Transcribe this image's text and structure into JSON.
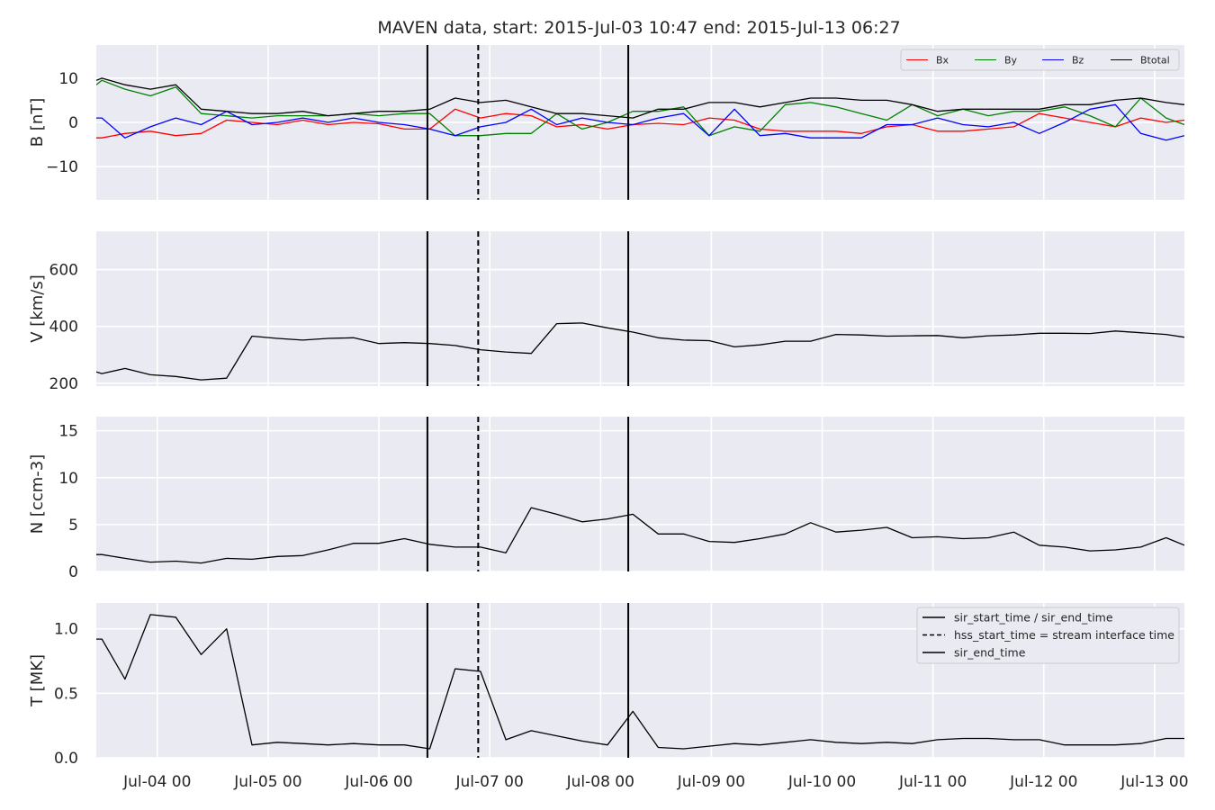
{
  "title": "MAVEN data, start: 2015-Jul-03 10:47  end: 2015-Jul-13 06:27",
  "colors": {
    "panel_bg": "#eaeaf2",
    "grid": "#ffffff",
    "Bx": "#ff0000",
    "By": "#008000",
    "Bz": "#0000ff",
    "Btotal": "#000000",
    "event_lines": "#000000"
  },
  "xaxis": {
    "range_days": [
      "2015-07-03T10:47",
      "2015-07-13T06:27"
    ],
    "ticks": [
      {
        "t": "2015-07-04T00:00",
        "label": "Jul-04 00"
      },
      {
        "t": "2015-07-05T00:00",
        "label": "Jul-05 00"
      },
      {
        "t": "2015-07-06T00:00",
        "label": "Jul-06 00"
      },
      {
        "t": "2015-07-07T00:00",
        "label": "Jul-07 00"
      },
      {
        "t": "2015-07-08T00:00",
        "label": "Jul-08 00"
      },
      {
        "t": "2015-07-09T00:00",
        "label": "Jul-09 00"
      },
      {
        "t": "2015-07-10T00:00",
        "label": "Jul-10 00"
      },
      {
        "t": "2015-07-11T00:00",
        "label": "Jul-11 00"
      },
      {
        "t": "2015-07-12T00:00",
        "label": "Jul-12 00"
      },
      {
        "t": "2015-07-13T00:00",
        "label": "Jul-13 00"
      }
    ]
  },
  "chart_data": {
    "type": "line",
    "title": "MAVEN data, start: 2015-Jul-03 10:47  end: 2015-Jul-13 06:27",
    "event_lines": [
      {
        "t": "2015-07-06T10:30",
        "style": "solid",
        "label": "sir_start_time / sir_end_time"
      },
      {
        "t": "2015-07-06T21:30",
        "style": "dashed",
        "label": "hss_start_time = stream interface time"
      },
      {
        "t": "2015-07-08T06:00",
        "style": "solid",
        "label": "sir_end_time"
      }
    ],
    "panels": [
      {
        "id": "B",
        "ylabel": "B [nT]",
        "ylim": [
          -17.5,
          17.5
        ],
        "yticks": [
          {
            "v": -10,
            "label": "−10"
          },
          {
            "v": 0,
            "label": "0"
          },
          {
            "v": 10,
            "label": "10"
          }
        ],
        "legend": {
          "placement": "upper-right",
          "entries": [
            "Bx",
            "By",
            "Bz",
            "Btotal"
          ]
        },
        "x": [
          "2015-07-03T10:47",
          "2015-07-03T12:00",
          "2015-07-03T17:00",
          "2015-07-03T22:30",
          "2015-07-04T04:00",
          "2015-07-04T09:30",
          "2015-07-04T15:00",
          "2015-07-04T20:30",
          "2015-07-05T02:00",
          "2015-07-05T07:30",
          "2015-07-05T13:00",
          "2015-07-05T18:30",
          "2015-07-06T00:00",
          "2015-07-06T05:30",
          "2015-07-06T11:00",
          "2015-07-06T16:30",
          "2015-07-06T22:00",
          "2015-07-07T03:30",
          "2015-07-07T09:00",
          "2015-07-07T14:30",
          "2015-07-07T20:00",
          "2015-07-08T01:30",
          "2015-07-08T07:00",
          "2015-07-08T12:30",
          "2015-07-08T18:00",
          "2015-07-08T23:30",
          "2015-07-09T05:00",
          "2015-07-09T10:30",
          "2015-07-09T16:00",
          "2015-07-09T21:30",
          "2015-07-10T03:00",
          "2015-07-10T08:30",
          "2015-07-10T14:00",
          "2015-07-10T19:30",
          "2015-07-11T01:00",
          "2015-07-11T06:30",
          "2015-07-11T12:00",
          "2015-07-11T17:30",
          "2015-07-11T23:00",
          "2015-07-12T04:30",
          "2015-07-12T10:00",
          "2015-07-12T15:30",
          "2015-07-12T21:00",
          "2015-07-13T02:30",
          "2015-07-13T06:27"
        ],
        "series": [
          {
            "name": "Bx",
            "values": [
              -3.5,
              -3.5,
              -2.5,
              -2.0,
              -3.0,
              -2.5,
              0.5,
              0.0,
              -0.5,
              0.5,
              -0.5,
              0.0,
              -0.3,
              -1.5,
              -1.5,
              3.0,
              1.0,
              2.0,
              1.5,
              -1.0,
              -0.5,
              -1.5,
              -0.5,
              -0.2,
              -0.5,
              1.0,
              0.5,
              -1.5,
              -2.0,
              -2.0,
              -2.0,
              -2.5,
              -1.0,
              -0.5,
              -2.0,
              -2.0,
              -1.5,
              -1.0,
              2.0,
              1.0,
              0.0,
              -1.0,
              1.0,
              0.0,
              0.5
            ]
          },
          {
            "name": "By",
            "values": [
              8.5,
              9.5,
              7.5,
              6.0,
              8.0,
              2.0,
              1.5,
              1.0,
              1.5,
              1.5,
              1.5,
              2.0,
              1.5,
              2.0,
              2.0,
              -3.0,
              -3.0,
              -2.5,
              -2.5,
              2.0,
              -1.5,
              0.0,
              2.5,
              2.5,
              3.5,
              -3.0,
              -1.0,
              -2.0,
              4.0,
              4.5,
              3.5,
              2.0,
              0.5,
              4.0,
              1.5,
              3.0,
              1.5,
              2.5,
              2.5,
              3.5,
              1.5,
              -1.0,
              5.5,
              1.0,
              -0.5
            ]
          },
          {
            "name": "Bz",
            "values": [
              1.0,
              1.0,
              -3.5,
              -1.0,
              1.0,
              -0.5,
              2.5,
              -0.5,
              0.0,
              1.0,
              0.0,
              1.0,
              0.0,
              -0.5,
              -1.5,
              -3.0,
              -1.0,
              0.0,
              3.0,
              -0.5,
              1.0,
              0.0,
              -0.5,
              1.0,
              2.0,
              -3.0,
              3.0,
              -3.0,
              -2.5,
              -3.5,
              -3.5,
              -3.5,
              -0.5,
              -0.5,
              1.0,
              -0.5,
              -1.0,
              0.0,
              -2.5,
              0.0,
              3.0,
              4.0,
              -2.5,
              -4.0,
              -3.0
            ]
          },
          {
            "name": "Btotal",
            "values": [
              9.5,
              10.0,
              8.5,
              7.5,
              8.5,
              3.0,
              2.5,
              2.0,
              2.0,
              2.5,
              1.5,
              2.0,
              2.5,
              2.5,
              3.0,
              5.5,
              4.5,
              5.0,
              3.5,
              2.0,
              2.0,
              1.5,
              1.0,
              3.0,
              3.0,
              4.5,
              4.5,
              3.5,
              4.5,
              5.5,
              5.5,
              5.0,
              5.0,
              4.0,
              2.5,
              3.0,
              3.0,
              3.0,
              3.0,
              4.0,
              4.0,
              5.0,
              5.5,
              4.5,
              4.0
            ]
          }
        ]
      },
      {
        "id": "V",
        "ylabel": "V [km/s]",
        "ylim": [
          190,
          735
        ],
        "yticks": [
          {
            "v": 200,
            "label": "200"
          },
          {
            "v": 400,
            "label": "400"
          },
          {
            "v": 600,
            "label": "600"
          }
        ],
        "x": [
          "2015-07-03T10:47",
          "2015-07-03T12:00",
          "2015-07-03T17:00",
          "2015-07-03T22:30",
          "2015-07-04T04:00",
          "2015-07-04T09:30",
          "2015-07-04T15:00",
          "2015-07-04T20:30",
          "2015-07-05T02:00",
          "2015-07-05T07:30",
          "2015-07-05T13:00",
          "2015-07-05T18:30",
          "2015-07-06T00:00",
          "2015-07-06T05:30",
          "2015-07-06T11:00",
          "2015-07-06T16:30",
          "2015-07-06T22:00",
          "2015-07-07T03:30",
          "2015-07-07T09:00",
          "2015-07-07T14:30",
          "2015-07-07T20:00",
          "2015-07-08T01:30",
          "2015-07-08T07:00",
          "2015-07-08T12:30",
          "2015-07-08T18:00",
          "2015-07-08T23:30",
          "2015-07-09T05:00",
          "2015-07-09T10:30",
          "2015-07-09T16:00",
          "2015-07-09T21:30",
          "2015-07-10T03:00",
          "2015-07-10T08:30",
          "2015-07-10T14:00",
          "2015-07-10T19:30",
          "2015-07-11T01:00",
          "2015-07-11T06:30",
          "2015-07-11T12:00",
          "2015-07-11T17:30",
          "2015-07-11T23:00",
          "2015-07-12T04:30",
          "2015-07-12T10:00",
          "2015-07-12T15:30",
          "2015-07-12T21:00",
          "2015-07-13T02:30",
          "2015-07-13T06:27"
        ],
        "series": [
          {
            "name": "",
            "values": [
              240,
              234,
              252,
              230,
              224,
              212,
              218,
              366,
              358,
              352,
              358,
              360,
              340,
              343,
              340,
              333,
              318,
              310,
              305,
              410,
              412,
              395,
              380,
              360,
              352,
              350,
              328,
              335,
              348,
              348,
              372,
              370,
              366,
              367,
              368,
              360,
              367,
              370,
              376,
              376,
              375,
              384,
              378,
              372,
              362
            ]
          }
        ]
      },
      {
        "id": "N",
        "ylabel": "N [ccm-3]",
        "ylim": [
          0,
          16.5
        ],
        "yticks": [
          {
            "v": 0,
            "label": "0"
          },
          {
            "v": 5,
            "label": "5"
          },
          {
            "v": 10,
            "label": "10"
          },
          {
            "v": 15,
            "label": "15"
          }
        ],
        "x": [
          "2015-07-03T10:47",
          "2015-07-03T12:00",
          "2015-07-03T17:00",
          "2015-07-03T22:30",
          "2015-07-04T04:00",
          "2015-07-04T09:30",
          "2015-07-04T15:00",
          "2015-07-04T20:30",
          "2015-07-05T02:00",
          "2015-07-05T07:30",
          "2015-07-05T13:00",
          "2015-07-05T18:30",
          "2015-07-06T00:00",
          "2015-07-06T05:30",
          "2015-07-06T11:00",
          "2015-07-06T16:30",
          "2015-07-06T22:00",
          "2015-07-07T03:30",
          "2015-07-07T09:00",
          "2015-07-07T14:30",
          "2015-07-07T20:00",
          "2015-07-08T01:30",
          "2015-07-08T07:00",
          "2015-07-08T12:30",
          "2015-07-08T18:00",
          "2015-07-08T23:30",
          "2015-07-09T05:00",
          "2015-07-09T10:30",
          "2015-07-09T16:00",
          "2015-07-09T21:30",
          "2015-07-10T03:00",
          "2015-07-10T08:30",
          "2015-07-10T14:00",
          "2015-07-10T19:30",
          "2015-07-11T01:00",
          "2015-07-11T06:30",
          "2015-07-11T12:00",
          "2015-07-11T17:30",
          "2015-07-11T23:00",
          "2015-07-12T04:30",
          "2015-07-12T10:00",
          "2015-07-12T15:30",
          "2015-07-12T21:00",
          "2015-07-13T02:30",
          "2015-07-13T06:27"
        ],
        "series": [
          {
            "name": "",
            "values": [
              1.8,
              1.8,
              1.4,
              1.0,
              1.1,
              0.9,
              1.4,
              1.3,
              1.6,
              1.7,
              2.3,
              3.0,
              3.0,
              3.5,
              2.9,
              2.6,
              2.6,
              2.0,
              6.8,
              6.1,
              5.3,
              5.6,
              6.1,
              4.0,
              4.0,
              3.2,
              3.1,
              3.5,
              4.0,
              5.2,
              4.2,
              4.4,
              4.7,
              3.6,
              3.7,
              3.5,
              3.6,
              4.2,
              2.8,
              2.6,
              2.2,
              2.3,
              2.6,
              3.6,
              2.8
            ]
          }
        ]
      },
      {
        "id": "T",
        "ylabel": "T [MK]",
        "ylim": [
          0,
          1.2
        ],
        "yticks": [
          {
            "v": 0.0,
            "label": "0.0"
          },
          {
            "v": 0.5,
            "label": "0.5"
          },
          {
            "v": 1.0,
            "label": "1.0"
          }
        ],
        "legend": {
          "placement": "upper-right",
          "entries": [
            "sir_start_time / sir_end_time",
            "hss_start_time = stream interface time",
            "sir_end_time"
          ]
        },
        "x": [
          "2015-07-03T10:47",
          "2015-07-03T12:00",
          "2015-07-03T17:00",
          "2015-07-03T22:30",
          "2015-07-04T04:00",
          "2015-07-04T09:30",
          "2015-07-04T15:00",
          "2015-07-04T20:30",
          "2015-07-05T02:00",
          "2015-07-05T07:30",
          "2015-07-05T13:00",
          "2015-07-05T18:30",
          "2015-07-06T00:00",
          "2015-07-06T05:30",
          "2015-07-06T11:00",
          "2015-07-06T16:30",
          "2015-07-06T22:00",
          "2015-07-07T03:30",
          "2015-07-07T09:00",
          "2015-07-07T14:30",
          "2015-07-07T20:00",
          "2015-07-08T01:30",
          "2015-07-08T07:00",
          "2015-07-08T12:30",
          "2015-07-08T18:00",
          "2015-07-08T23:30",
          "2015-07-09T05:00",
          "2015-07-09T10:30",
          "2015-07-09T16:00",
          "2015-07-09T21:30",
          "2015-07-10T03:00",
          "2015-07-10T08:30",
          "2015-07-10T14:00",
          "2015-07-10T19:30",
          "2015-07-11T01:00",
          "2015-07-11T06:30",
          "2015-07-11T12:00",
          "2015-07-11T17:30",
          "2015-07-11T23:00",
          "2015-07-12T04:30",
          "2015-07-12T10:00",
          "2015-07-12T15:30",
          "2015-07-12T21:00",
          "2015-07-13T02:30",
          "2015-07-13T06:27"
        ],
        "series": [
          {
            "name": "",
            "values": [
              0.92,
              0.92,
              0.61,
              1.11,
              1.09,
              0.8,
              1.0,
              0.1,
              0.12,
              0.11,
              0.1,
              0.11,
              0.1,
              0.1,
              0.07,
              0.69,
              0.67,
              0.14,
              0.21,
              0.17,
              0.13,
              0.1,
              0.36,
              0.08,
              0.07,
              0.09,
              0.11,
              0.1,
              0.12,
              0.14,
              0.12,
              0.11,
              0.12,
              0.11,
              0.14,
              0.15,
              0.15,
              0.14,
              0.14,
              0.1,
              0.1,
              0.1,
              0.11,
              0.15,
              0.15
            ]
          }
        ]
      }
    ]
  }
}
